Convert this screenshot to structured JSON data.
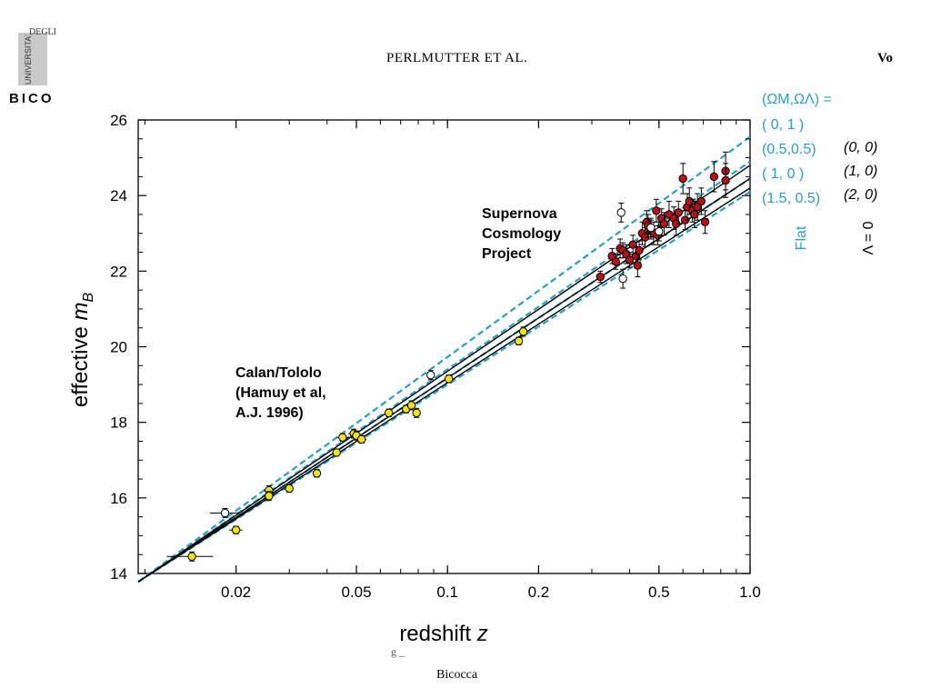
{
  "header": {
    "logo_line1": "UNIVERSITA'",
    "logo_line2": "DEGLI",
    "logo_line3": "BICO",
    "running_head": "PERLMUTTER ET AL.",
    "running_head_right": "Vo"
  },
  "footer": {
    "line1": "g _",
    "line2": "Bicocca"
  },
  "chart_data": {
    "type": "scatter",
    "title": "",
    "xlabel": "redshift",
    "xlabel_symbol": "z",
    "ylabel": "effective",
    "ylabel_symbol": "m",
    "ylabel_subscript": "B",
    "xscale": "log",
    "xlim": [
      0.0095,
      1.0
    ],
    "ylim": [
      14,
      26
    ],
    "xticks": [
      0.02,
      0.05,
      0.1,
      0.2,
      0.5,
      1.0
    ],
    "xtick_labels": [
      "0.02",
      "0.05",
      "0.1",
      "0.2",
      "0.5",
      "1.0"
    ],
    "yticks": [
      14,
      16,
      18,
      20,
      22,
      24,
      26
    ],
    "ytick_labels": [
      "14",
      "16",
      "18",
      "20",
      "22",
      "24",
      "26"
    ],
    "grid": false,
    "annotations": [
      {
        "lines": [
          "Supernova",
          "Cosmology",
          "Project"
        ],
        "x": 0.25,
        "y": 23.8
      },
      {
        "lines": [
          "Calan/Tololo",
          "(Hamuy et al,",
          "A.J. 1996)"
        ],
        "x": 0.022,
        "y": 19.5
      }
    ],
    "legend": {
      "header": "(ΩM,ΩΛ) =",
      "flat_models": [
        "( 0,   1 )",
        "(0.5,0.5)",
        "( 1,    0 )",
        "(1.5,  0.5)"
      ],
      "flat_label": "Flat",
      "lambda_zero_models": [
        "(0, 0)",
        "(1, 0)",
        "(2, 0)"
      ],
      "lambda_zero_label": "Λ = 0",
      "flat_color": "#2a9fc4",
      "lambda_zero_color": "#000000"
    },
    "model_lines": [
      {
        "name": "( 0,   1 )",
        "family": "Flat",
        "style": "dashed",
        "color": "#2a9fc4",
        "points": [
          [
            0.0095,
            13.78
          ],
          [
            1.0,
            25.55
          ]
        ]
      },
      {
        "name": "(0.5,0.5)",
        "family": "Flat",
        "style": "dashed",
        "color": "#2a9fc4",
        "points": [
          [
            0.0095,
            13.78
          ],
          [
            1.0,
            24.9
          ]
        ]
      },
      {
        "name": "( 1,    0 )",
        "family": "Flat",
        "style": "dashed",
        "color": "#2a9fc4",
        "points": [
          [
            0.0095,
            13.78
          ],
          [
            1.0,
            24.45
          ]
        ]
      },
      {
        "name": "(1.5,  0.5)",
        "family": "Flat",
        "style": "dashed",
        "color": "#2a9fc4",
        "points": [
          [
            0.0095,
            13.78
          ],
          [
            1.0,
            24.1
          ]
        ]
      },
      {
        "name": "(0, 0)",
        "family": "Λ = 0",
        "style": "solid",
        "color": "#000000",
        "points": [
          [
            0.0095,
            13.78
          ],
          [
            1.0,
            24.8
          ]
        ]
      },
      {
        "name": "(1, 0)",
        "family": "Λ = 0",
        "style": "solid",
        "color": "#000000",
        "points": [
          [
            0.0095,
            13.78
          ],
          [
            1.0,
            24.45
          ]
        ]
      },
      {
        "name": "(2, 0)",
        "family": "Λ = 0",
        "style": "solid",
        "color": "#000000",
        "points": [
          [
            0.0095,
            13.78
          ],
          [
            1.0,
            24.2
          ]
        ]
      }
    ],
    "series": [
      {
        "name": "Calan/Tololo",
        "marker": "circle",
        "color": "#f2e21a",
        "points": [
          [
            0.0143,
            14.45,
            0.12,
            0.0025
          ],
          [
            0.02,
            15.15,
            0.1,
            0.001
          ],
          [
            0.0257,
            16.2,
            0.12,
            0.001
          ],
          [
            0.0257,
            16.05,
            0.12,
            0.001
          ],
          [
            0.03,
            16.25,
            0.1,
            0.001
          ],
          [
            0.037,
            16.65,
            0.1,
            0.001
          ],
          [
            0.043,
            17.2,
            0.08,
            0.001
          ],
          [
            0.045,
            17.6,
            0.1,
            0.002
          ],
          [
            0.049,
            17.7,
            0.12,
            0.002
          ],
          [
            0.05,
            17.65,
            0.12,
            0.002
          ],
          [
            0.052,
            17.55,
            0.1,
            0.002
          ],
          [
            0.064,
            18.25,
            0.1,
            0.002
          ],
          [
            0.073,
            18.35,
            0.1,
            0.002
          ],
          [
            0.076,
            18.45,
            0.12,
            0.002
          ],
          [
            0.079,
            18.25,
            0.12,
            0.002
          ],
          [
            0.101,
            19.15,
            0.1,
            0.002
          ],
          [
            0.172,
            20.15,
            0.1,
            0.001
          ],
          [
            0.178,
            20.4,
            0.12,
            0.001
          ]
        ]
      },
      {
        "name": "Calan/Tololo (excluded)",
        "marker": "open-circle",
        "color": "#ffffff",
        "points": [
          [
            0.0184,
            15.6,
            0.12,
            0.002
          ],
          [
            0.088,
            19.25,
            0.12,
            0.002
          ]
        ]
      },
      {
        "name": "Supernova Cosmology Project",
        "marker": "circle",
        "color": "#b5131c",
        "points": [
          [
            0.32,
            21.85,
            0.15,
            0
          ],
          [
            0.35,
            22.4,
            0.2,
            0
          ],
          [
            0.36,
            22.25,
            0.2,
            0
          ],
          [
            0.372,
            22.6,
            0.25,
            0
          ],
          [
            0.38,
            22.55,
            0.2,
            0
          ],
          [
            0.39,
            22.45,
            0.25,
            0
          ],
          [
            0.4,
            22.3,
            0.2,
            0
          ],
          [
            0.41,
            22.7,
            0.25,
            0
          ],
          [
            0.42,
            22.4,
            0.25,
            0
          ],
          [
            0.425,
            22.15,
            0.3,
            0
          ],
          [
            0.43,
            22.55,
            0.25,
            0
          ],
          [
            0.44,
            23.0,
            0.3,
            0
          ],
          [
            0.45,
            22.9,
            0.25,
            0
          ],
          [
            0.455,
            23.3,
            0.3,
            0
          ],
          [
            0.46,
            23.2,
            0.3,
            0
          ],
          [
            0.47,
            23.1,
            0.25,
            0
          ],
          [
            0.48,
            23.0,
            0.3,
            0
          ],
          [
            0.49,
            23.6,
            0.3,
            0
          ],
          [
            0.495,
            22.95,
            0.25,
            0
          ],
          [
            0.51,
            23.4,
            0.25,
            0
          ],
          [
            0.52,
            23.25,
            0.3,
            0
          ],
          [
            0.54,
            23.5,
            0.35,
            0
          ],
          [
            0.56,
            23.4,
            0.3,
            0
          ],
          [
            0.57,
            23.25,
            0.3,
            0
          ],
          [
            0.58,
            23.55,
            0.3,
            0
          ],
          [
            0.6,
            24.45,
            0.4,
            0
          ],
          [
            0.61,
            23.35,
            0.25,
            0
          ],
          [
            0.62,
            23.7,
            0.35,
            0
          ],
          [
            0.63,
            23.85,
            0.35,
            0
          ],
          [
            0.645,
            23.6,
            0.3,
            0
          ],
          [
            0.655,
            23.5,
            0.35,
            0
          ],
          [
            0.67,
            23.7,
            0.35,
            0
          ],
          [
            0.69,
            23.85,
            0.35,
            0
          ],
          [
            0.71,
            23.3,
            0.3,
            0
          ],
          [
            0.76,
            24.5,
            0.4,
            0
          ],
          [
            0.83,
            24.65,
            0.5,
            0
          ],
          [
            0.83,
            24.4,
            0.45,
            0
          ]
        ]
      },
      {
        "name": "Supernova Cosmology Project (excluded)",
        "marker": "open-circle",
        "color": "#ffffff",
        "points": [
          [
            0.375,
            23.55,
            0.25,
            0
          ],
          [
            0.38,
            21.8,
            0.25,
            0
          ],
          [
            0.47,
            23.15,
            0.25,
            0
          ],
          [
            0.5,
            23.05,
            0.25,
            0
          ]
        ]
      }
    ]
  }
}
